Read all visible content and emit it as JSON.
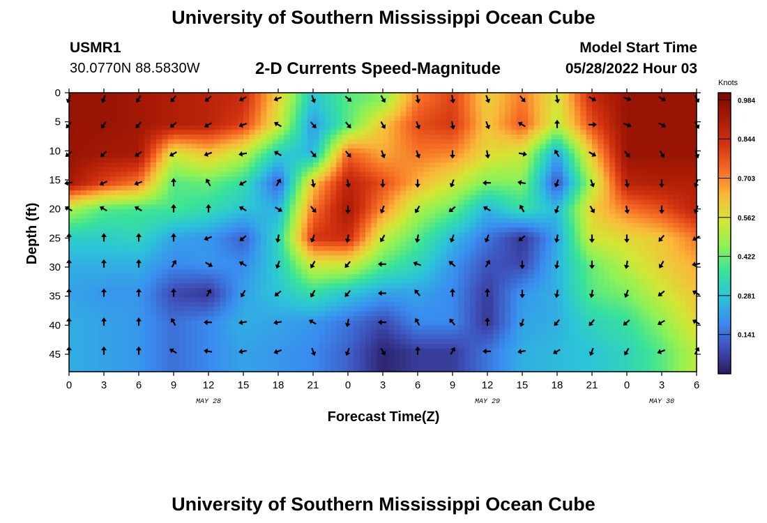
{
  "header": {
    "title": "University of Southern Mississippi Ocean Cube",
    "station_id": "USMR1",
    "coords": "30.0770N  88.5830W",
    "plot_title": "2-D Currents Speed-Magnitude",
    "model_label": "Model Start Time",
    "model_date": "05/28/2022 Hour 03"
  },
  "footer": {
    "title": "University of Southern Mississippi Ocean Cube"
  },
  "colorbar": {
    "unit": "Knots",
    "ticks": [
      "0.984",
      "0.844",
      "0.703",
      "0.562",
      "0.422",
      "0.281",
      "0.141"
    ],
    "tick_values": [
      0.984,
      0.844,
      0.703,
      0.562,
      0.422,
      0.281,
      0.141
    ],
    "range": [
      0.0,
      1.01
    ],
    "colors": [
      "#2a1a5e",
      "#3e4fb8",
      "#3a8cf0",
      "#2cc4d8",
      "#38e29a",
      "#8ef255",
      "#d4e635",
      "#f9b93a",
      "#f56a24",
      "#d23310",
      "#a81a05",
      "#7a0a03"
    ]
  },
  "chart_data": {
    "type": "heatmap",
    "subtype": "time-depth current speed with direction arrows",
    "title": "2-D Currents Speed-Magnitude",
    "xlabel": "Forecast Time(Z)",
    "ylabel": "Depth (ft)",
    "x_tick_labels": [
      "0",
      "3",
      "6",
      "9",
      "12",
      "15",
      "18",
      "21",
      "0",
      "3",
      "6",
      "9",
      "12",
      "15",
      "18",
      "21",
      "0",
      "3",
      "6"
    ],
    "x_hours": [
      0,
      3,
      6,
      9,
      12,
      15,
      18,
      21,
      24,
      27,
      30,
      33,
      36,
      39,
      42,
      45,
      48,
      51,
      54
    ],
    "date_labels": [
      "MAY 28",
      "MAY 29",
      "MAY 30"
    ],
    "date_label_hours": [
      12,
      36,
      51
    ],
    "y_ticks": [
      0,
      5,
      10,
      15,
      20,
      25,
      30,
      35,
      40,
      45
    ],
    "ylim": [
      0,
      48
    ],
    "xlim": [
      0,
      54
    ],
    "units": "Knots",
    "depths": [
      1,
      5.5,
      10.5,
      15.5,
      20,
      25,
      29.5,
      34.5,
      39.5,
      44.5
    ],
    "speed": [
      [
        0.95,
        0.95,
        0.93,
        0.9,
        0.88,
        0.85,
        0.6,
        0.28,
        0.4,
        0.45,
        0.72,
        0.8,
        0.6,
        0.72,
        0.55,
        0.85,
        0.95,
        0.95,
        0.95
      ],
      [
        0.95,
        0.95,
        0.93,
        0.9,
        0.88,
        0.8,
        0.55,
        0.2,
        0.4,
        0.62,
        0.78,
        0.82,
        0.62,
        0.76,
        0.52,
        0.78,
        0.95,
        0.95,
        0.95
      ],
      [
        0.95,
        0.93,
        0.92,
        0.55,
        0.62,
        0.52,
        0.3,
        0.25,
        0.75,
        0.66,
        0.72,
        0.7,
        0.58,
        0.54,
        0.22,
        0.62,
        0.95,
        0.95,
        0.95
      ],
      [
        0.92,
        0.8,
        0.72,
        0.4,
        0.42,
        0.35,
        0.12,
        0.62,
        0.88,
        0.78,
        0.65,
        0.55,
        0.44,
        0.45,
        0.1,
        0.5,
        0.88,
        0.9,
        0.9
      ],
      [
        0.5,
        0.4,
        0.38,
        0.38,
        0.34,
        0.28,
        0.24,
        0.72,
        0.92,
        0.7,
        0.5,
        0.42,
        0.25,
        0.35,
        0.26,
        0.6,
        0.72,
        0.78,
        0.88
      ],
      [
        0.3,
        0.3,
        0.32,
        0.22,
        0.2,
        0.12,
        0.32,
        0.82,
        0.85,
        0.52,
        0.4,
        0.26,
        0.15,
        0.05,
        0.22,
        0.55,
        0.58,
        0.62,
        0.72
      ],
      [
        0.24,
        0.24,
        0.24,
        0.18,
        0.2,
        0.18,
        0.3,
        0.55,
        0.55,
        0.4,
        0.32,
        0.2,
        0.1,
        0.08,
        0.25,
        0.42,
        0.52,
        0.6,
        0.66
      ],
      [
        0.22,
        0.2,
        0.2,
        0.08,
        0.05,
        0.22,
        0.28,
        0.35,
        0.28,
        0.22,
        0.22,
        0.18,
        0.06,
        0.2,
        0.24,
        0.4,
        0.44,
        0.54,
        0.62
      ],
      [
        0.24,
        0.22,
        0.2,
        0.14,
        0.18,
        0.24,
        0.22,
        0.2,
        0.15,
        0.08,
        0.18,
        0.18,
        0.05,
        0.22,
        0.24,
        0.32,
        0.36,
        0.46,
        0.58
      ],
      [
        0.24,
        0.22,
        0.2,
        0.14,
        0.18,
        0.22,
        0.2,
        0.18,
        0.12,
        0.02,
        0.06,
        0.06,
        0.15,
        0.24,
        0.26,
        0.28,
        0.32,
        0.4,
        0.52
      ]
    ],
    "direction_deg": [
      [
        200,
        200,
        210,
        220,
        230,
        240,
        250,
        160,
        130,
        150,
        170,
        170,
        160,
        140,
        170,
        120,
        110,
        120,
        150
      ],
      [
        220,
        215,
        220,
        230,
        240,
        250,
        300,
        140,
        140,
        150,
        160,
        170,
        160,
        300,
        0,
        90,
        110,
        120,
        150
      ],
      [
        230,
        225,
        235,
        240,
        250,
        260,
        300,
        140,
        140,
        160,
        160,
        180,
        170,
        100,
        330,
        120,
        140,
        150,
        160
      ],
      [
        260,
        245,
        250,
        0,
        330,
        240,
        30,
        170,
        170,
        180,
        180,
        200,
        270,
        280,
        200,
        160,
        170,
        180,
        200
      ],
      [
        300,
        300,
        300,
        0,
        0,
        300,
        120,
        140,
        180,
        200,
        210,
        230,
        300,
        330,
        200,
        150,
        170,
        180,
        200
      ],
      [
        0,
        0,
        0,
        0,
        250,
        230,
        190,
        200,
        190,
        210,
        190,
        200,
        200,
        230,
        190,
        180,
        180,
        220,
        240
      ],
      [
        0,
        0,
        0,
        30,
        120,
        300,
        200,
        210,
        220,
        270,
        290,
        310,
        30,
        180,
        190,
        180,
        190,
        210,
        260
      ],
      [
        0,
        0,
        0,
        0,
        30,
        210,
        230,
        210,
        220,
        270,
        320,
        0,
        0,
        180,
        190,
        190,
        200,
        230,
        300
      ],
      [
        0,
        0,
        0,
        330,
        270,
        260,
        260,
        300,
        190,
        270,
        330,
        320,
        0,
        200,
        220,
        220,
        230,
        240,
        300
      ],
      [
        0,
        0,
        0,
        300,
        280,
        260,
        250,
        160,
        200,
        150,
        0,
        30,
        270,
        260,
        240,
        200,
        210,
        250,
        30
      ]
    ]
  }
}
